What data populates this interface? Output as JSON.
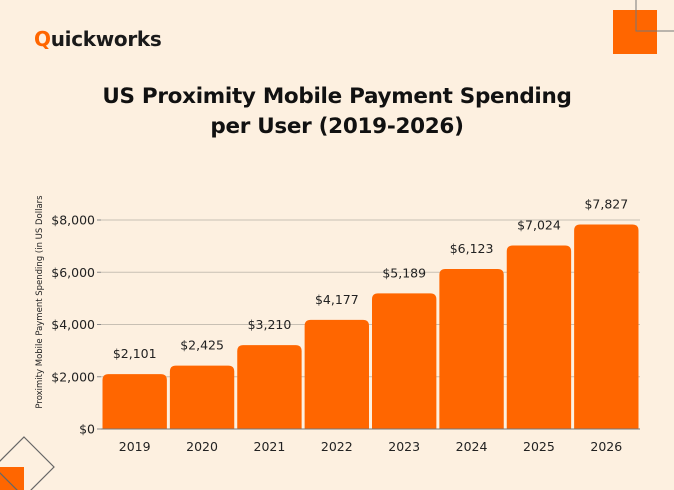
{
  "brand": {
    "logo_initial": "Q",
    "logo_rest": "uickworks",
    "accent": "#ff6600"
  },
  "title_line1": "US Proximity Mobile Payment Spending",
  "title_line2": "per User (2019-2026)",
  "chart_data": {
    "type": "bar",
    "title": "US Proximity Mobile Payment Spending per User (2019-2026)",
    "xlabel": "",
    "ylabel": "Proximity Mobile Payment Spending (in US Dollars",
    "categories": [
      "2019",
      "2020",
      "2021",
      "2022",
      "2023",
      "2024",
      "2025",
      "2026"
    ],
    "values": [
      2101,
      2425,
      3210,
      4177,
      5189,
      6123,
      7024,
      7827
    ],
    "data_labels": [
      "$2,101",
      "$2,425",
      "$3,210",
      "$4,177",
      "$5,189",
      "$6,123",
      "$7,024",
      "$7,827"
    ],
    "ylim": [
      0,
      8000
    ],
    "yticks": [
      0,
      2000,
      4000,
      6000,
      8000
    ],
    "ytick_labels": [
      "$0",
      "$2,000",
      "$4,000",
      "$6,000",
      "$8,000"
    ],
    "grid": true,
    "bar_color": "#ff6600",
    "legend": "none"
  }
}
